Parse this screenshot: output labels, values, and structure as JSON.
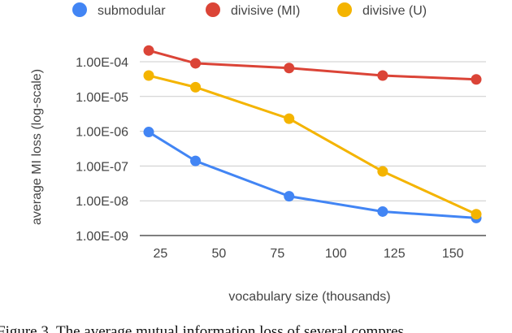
{
  "chart_data": {
    "type": "line",
    "title": "",
    "xlabel": "vocabulary size (thousands)",
    "ylabel": "average MI loss (log-scale)",
    "yscale": "log",
    "xlim": [
      17,
      160
    ],
    "ylim": [
      1e-09,
      0.0001
    ],
    "x": [
      20,
      40,
      80,
      120,
      160
    ],
    "x_ticks": [
      25,
      50,
      75,
      100,
      125,
      150
    ],
    "x_tick_labels": [
      "25",
      "50",
      "75",
      "100",
      "125",
      "150"
    ],
    "y_ticks": [
      1e-09,
      1e-08,
      1e-07,
      1e-06,
      1e-05,
      0.0001
    ],
    "y_tick_labels": [
      "1.00E-09",
      "1.00E-08",
      "1.00E-07",
      "1.00E-06",
      "1.00E-05",
      "1.00E-04"
    ],
    "grid": "horizontal",
    "legend_position": "top",
    "series": [
      {
        "name": "submodular",
        "color": "#4285f4",
        "values": [
          9.5e-07,
          1.4e-07,
          1.35e-08,
          4.9e-09,
          3.2e-09
        ]
      },
      {
        "name": "divisive (MI)",
        "color": "#db4437",
        "values": [
          0.00021,
          9e-05,
          6.6e-05,
          4e-05,
          3.1e-05
        ]
      },
      {
        "name": "divisive (U)",
        "color": "#f4b400",
        "values": [
          4e-05,
          1.85e-05,
          2.3e-06,
          7e-08,
          4.1e-09
        ]
      }
    ]
  },
  "caption": "Figure 3. The average mutual information loss of several compres"
}
